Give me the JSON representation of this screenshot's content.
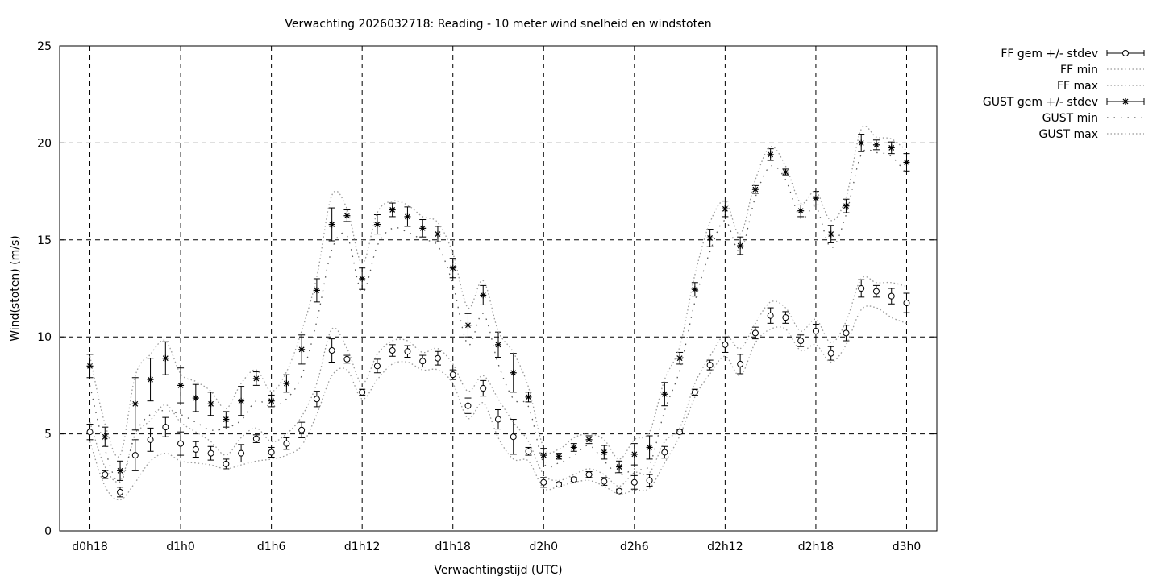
{
  "chart_data": {
    "type": "line",
    "title": "Verwachting 2026032718: Reading - 10 meter wind snelheid en windstoten",
    "xlabel": "Verwachtingstijd (UTC)",
    "ylabel": "Wind(stoten) (m/s)",
    "xlim_hours": [
      16,
      74
    ],
    "ylim": [
      0,
      25
    ],
    "grid": true,
    "legend_placement": "outside-top-right",
    "x_ticks": [
      {
        "hour": 18,
        "label": "d0h18"
      },
      {
        "hour": 24,
        "label": "d1h0"
      },
      {
        "hour": 30,
        "label": "d1h6"
      },
      {
        "hour": 36,
        "label": "d1h12"
      },
      {
        "hour": 42,
        "label": "d1h18"
      },
      {
        "hour": 48,
        "label": "d2h0"
      },
      {
        "hour": 54,
        "label": "d2h6"
      },
      {
        "hour": 60,
        "label": "d2h12"
      },
      {
        "hour": 66,
        "label": "d2h18"
      },
      {
        "hour": 72,
        "label": "d3h0"
      }
    ],
    "y_ticks": [
      0,
      5,
      10,
      15,
      20,
      25
    ],
    "x_hours_start": 18,
    "x_hours_step": 1,
    "series": [
      {
        "name": "FF gem +/- stdev",
        "kind": "errorbar",
        "marker": "circle",
        "values": [
          5.1,
          2.9,
          2.0,
          3.9,
          4.7,
          5.35,
          4.5,
          4.2,
          4.0,
          3.45,
          4.0,
          4.75,
          4.05,
          4.5,
          5.2,
          6.8,
          9.3,
          8.85,
          7.15,
          8.5,
          9.3,
          9.25,
          8.75,
          8.9,
          8.05,
          6.45,
          7.35,
          5.75,
          4.85,
          4.1,
          2.5,
          2.4,
          2.65,
          2.9,
          2.55,
          2.05,
          2.5,
          2.6,
          4.05,
          5.1,
          7.15,
          8.55,
          9.6,
          8.6,
          10.2,
          11.1,
          11.0,
          9.8,
          10.3,
          9.15,
          10.2,
          12.5,
          12.35,
          12.1,
          11.75
        ],
        "stdev": [
          0.4,
          0.2,
          0.25,
          0.8,
          0.6,
          0.5,
          0.6,
          0.4,
          0.35,
          0.25,
          0.45,
          0.2,
          0.25,
          0.3,
          0.4,
          0.4,
          0.6,
          0.2,
          0.15,
          0.35,
          0.3,
          0.3,
          0.3,
          0.35,
          0.25,
          0.4,
          0.4,
          0.5,
          0.9,
          0.2,
          0.25,
          0.1,
          0.1,
          0.15,
          0.2,
          0.1,
          0.35,
          0.3,
          0.3,
          0.1,
          0.15,
          0.25,
          0.4,
          0.5,
          0.3,
          0.4,
          0.3,
          0.3,
          0.35,
          0.35,
          0.4,
          0.45,
          0.3,
          0.4,
          0.5
        ]
      },
      {
        "name": "FF min",
        "kind": "dotted",
        "values": [
          4.6,
          2.3,
          1.6,
          2.5,
          3.6,
          4.0,
          3.6,
          3.5,
          3.4,
          3.2,
          3.4,
          3.6,
          3.7,
          3.9,
          4.4,
          6.0,
          8.0,
          8.3,
          6.8,
          7.8,
          8.6,
          8.7,
          8.3,
          8.3,
          7.6,
          5.8,
          6.6,
          4.8,
          3.7,
          3.6,
          2.2,
          2.3,
          2.5,
          2.6,
          2.3,
          1.9,
          2.1,
          2.2,
          3.5,
          4.9,
          6.9,
          8.1,
          9.0,
          8.0,
          9.7,
          10.4,
          10.4,
          9.3,
          9.6,
          8.7,
          9.6,
          11.4,
          11.5,
          11.0,
          10.7
        ]
      },
      {
        "name": "FF max",
        "kind": "dotted",
        "values": [
          5.6,
          3.3,
          2.6,
          4.9,
          5.7,
          6.5,
          5.6,
          5.1,
          4.6,
          3.9,
          4.8,
          5.3,
          4.6,
          5.0,
          5.9,
          7.6,
          10.4,
          9.4,
          7.6,
          9.1,
          9.8,
          9.8,
          9.2,
          9.4,
          8.6,
          7.2,
          8.0,
          6.8,
          5.6,
          4.6,
          2.9,
          2.6,
          2.9,
          3.2,
          2.9,
          2.3,
          3.0,
          3.0,
          4.6,
          5.3,
          7.6,
          9.0,
          10.1,
          9.4,
          10.7,
          11.8,
          11.5,
          10.3,
          10.9,
          9.7,
          10.8,
          13.0,
          12.8,
          12.8,
          12.6
        ]
      },
      {
        "name": "GUST gem +/- stdev",
        "kind": "errorbar",
        "marker": "star",
        "values": [
          8.5,
          4.85,
          3.1,
          6.55,
          7.8,
          8.9,
          7.5,
          6.85,
          6.55,
          5.75,
          6.7,
          7.85,
          6.7,
          7.6,
          9.35,
          12.4,
          15.8,
          16.25,
          13.0,
          15.8,
          16.55,
          16.2,
          15.6,
          15.3,
          13.55,
          10.6,
          12.15,
          9.6,
          8.15,
          6.9,
          3.9,
          3.85,
          4.3,
          4.7,
          4.05,
          3.3,
          3.95,
          4.3,
          7.05,
          8.9,
          12.45,
          15.1,
          16.6,
          14.7,
          17.6,
          19.4,
          18.5,
          16.5,
          17.15,
          15.3,
          16.75,
          20.0,
          19.9,
          19.75,
          19.0
        ],
        "stdev": [
          0.6,
          0.5,
          0.5,
          1.35,
          1.1,
          0.85,
          0.9,
          0.7,
          0.6,
          0.4,
          0.75,
          0.35,
          0.3,
          0.45,
          0.75,
          0.6,
          0.85,
          0.3,
          0.55,
          0.5,
          0.35,
          0.5,
          0.45,
          0.4,
          0.5,
          0.6,
          0.5,
          0.65,
          1.0,
          0.25,
          0.35,
          0.15,
          0.2,
          0.2,
          0.35,
          0.3,
          0.55,
          0.6,
          0.6,
          0.3,
          0.35,
          0.45,
          0.4,
          0.45,
          0.2,
          0.3,
          0.15,
          0.3,
          0.35,
          0.45,
          0.35,
          0.45,
          0.25,
          0.3,
          0.45
        ]
      },
      {
        "name": "GUST min",
        "kind": "dotted-sparse",
        "values": [
          7.5,
          4.2,
          2.5,
          5.0,
          6.0,
          6.2,
          6.0,
          5.6,
          5.2,
          5.3,
          5.7,
          6.7,
          6.4,
          6.8,
          8.0,
          10.8,
          14.5,
          15.2,
          12.3,
          14.7,
          15.6,
          15.4,
          15.0,
          14.7,
          12.7,
          9.6,
          11.2,
          8.6,
          6.8,
          6.4,
          3.5,
          3.5,
          3.9,
          4.4,
          3.6,
          2.9,
          3.2,
          3.4,
          6.2,
          8.3,
          11.8,
          14.4,
          16.0,
          14.4,
          17.2,
          18.8,
          18.1,
          16.1,
          16.7,
          14.6,
          16.3,
          19.4,
          19.5,
          19.3,
          18.4
        ]
      },
      {
        "name": "GUST max",
        "kind": "dotted",
        "values": [
          9.0,
          5.5,
          3.9,
          8.0,
          9.1,
          9.8,
          8.1,
          7.7,
          7.2,
          6.3,
          7.6,
          8.3,
          7.2,
          8.2,
          10.3,
          13.1,
          17.3,
          16.6,
          13.8,
          16.4,
          17.0,
          16.8,
          16.2,
          15.9,
          14.3,
          11.5,
          12.9,
          10.3,
          9.2,
          7.4,
          4.3,
          4.2,
          4.8,
          5.0,
          4.7,
          3.7,
          4.7,
          5.1,
          7.8,
          9.5,
          13.2,
          15.9,
          17.0,
          15.3,
          18.1,
          19.8,
          18.8,
          16.9,
          17.5,
          16.0,
          17.2,
          20.7,
          20.3,
          20.2,
          19.6
        ]
      }
    ]
  }
}
